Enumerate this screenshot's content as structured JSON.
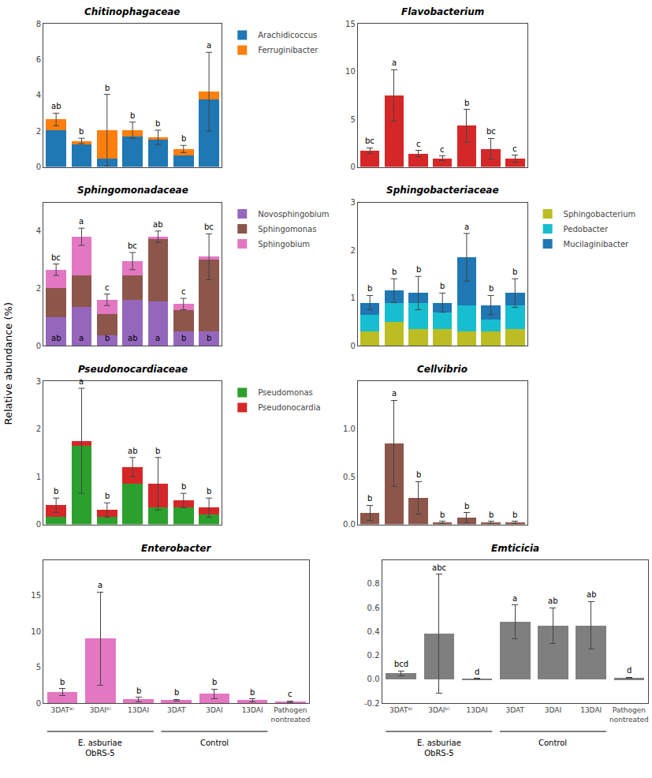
{
  "ylabel": "Relative abundance (%)",
  "chart_data": [
    {
      "type": "bar",
      "title": "Chitinophagaceae",
      "stacked": true,
      "categories": [
        null,
        null,
        null,
        null,
        null,
        null,
        null
      ],
      "tick_labels": "y",
      "grid": false,
      "legend": "right",
      "ylim": [
        0,
        8
      ],
      "yticks": [
        0,
        2,
        4,
        6,
        8
      ],
      "series": [
        {
          "name": "Arachidicoccus",
          "values": [
            2.05,
            1.25,
            0.45,
            1.7,
            1.5,
            0.65,
            3.75
          ]
        },
        {
          "name": "Ferruginibacter",
          "values": [
            0.6,
            0.2,
            1.6,
            0.35,
            0.15,
            0.35,
            0.45
          ]
        }
      ],
      "error": [
        0.35,
        0.15,
        2.0,
        0.45,
        0.4,
        0.2,
        2.2
      ],
      "annotations": [
        {
          "position": "top",
          "texts": [
            "ab",
            "b",
            "b",
            "b",
            "b",
            "b",
            "a"
          ]
        }
      ]
    },
    {
      "type": "bar",
      "title": "Flavobacterium",
      "categories": [
        null,
        null,
        null,
        null,
        null,
        null,
        null
      ],
      "tick_labels": "y",
      "grid": false,
      "ylim": [
        0,
        15
      ],
      "yticks": [
        0,
        5,
        10,
        15
      ],
      "values": [
        1.7,
        7.5,
        1.4,
        0.9,
        4.3,
        1.9,
        0.85
      ],
      "error": [
        0.3,
        2.7,
        0.3,
        0.25,
        1.7,
        1.1,
        0.35
      ],
      "annotations": [
        {
          "position": "top",
          "texts": [
            "bc",
            "a",
            "c",
            "c",
            "b",
            "bc",
            "c"
          ]
        }
      ]
    },
    {
      "type": "bar",
      "title": "Sphingomonadaceae",
      "stacked": true,
      "categories": [
        null,
        null,
        null,
        null,
        null,
        null,
        null
      ],
      "tick_labels": "y",
      "grid": false,
      "legend": "right",
      "ylim": [
        0,
        5
      ],
      "yticks": [
        0,
        2,
        4
      ],
      "series": [
        {
          "name": "Novosphingobium",
          "values": [
            1.0,
            1.35,
            0.35,
            1.6,
            1.55,
            0.5,
            0.5
          ]
        },
        {
          "name": "Sphingomonas",
          "values": [
            1.0,
            1.1,
            0.75,
            0.85,
            2.2,
            0.75,
            2.5
          ]
        },
        {
          "name": "Sphingobium",
          "values": [
            0.65,
            1.35,
            0.5,
            0.5,
            0.05,
            0.2,
            0.1
          ]
        }
      ],
      "error": [
        0.2,
        0.3,
        0.2,
        0.3,
        0.2,
        0.2,
        0.8
      ],
      "annotations": [
        {
          "position": "top",
          "texts": [
            "bc",
            "a",
            "c",
            "bc",
            "ab",
            "c",
            "bc"
          ]
        },
        {
          "position": "bottom",
          "texts": [
            "ab",
            "a",
            "b",
            "ab",
            "a",
            "b",
            "b"
          ]
        }
      ]
    },
    {
      "type": "bar",
      "title": "Sphingobacteriaceae",
      "stacked": true,
      "categories": [
        null,
        null,
        null,
        null,
        null,
        null,
        null
      ],
      "tick_labels": "y",
      "grid": false,
      "legend": "right",
      "ylim": [
        0,
        3
      ],
      "yticks": [
        0,
        1,
        2,
        3
      ],
      "series": [
        {
          "name": "Sphingobacterium",
          "values": [
            0.3,
            0.5,
            0.35,
            0.35,
            0.3,
            0.3,
            0.35
          ]
        },
        {
          "name": "Pedobacter",
          "values": [
            0.35,
            0.4,
            0.55,
            0.35,
            0.55,
            0.25,
            0.5
          ]
        },
        {
          "name": "Mucilaginibacter",
          "values": [
            0.25,
            0.25,
            0.2,
            0.2,
            1.0,
            0.3,
            0.25
          ]
        }
      ],
      "error": [
        0.15,
        0.25,
        0.35,
        0.2,
        0.5,
        0.2,
        0.3
      ],
      "annotations": [
        {
          "position": "top",
          "texts": [
            "b",
            "b",
            "b",
            "b",
            "a",
            "b",
            "b"
          ]
        }
      ]
    },
    {
      "type": "bar",
      "title": "Pseudonocardiaceae",
      "stacked": true,
      "categories": [
        null,
        null,
        null,
        null,
        null,
        null,
        null
      ],
      "tick_labels": "y",
      "grid": false,
      "legend": "right",
      "ylim": [
        0,
        3
      ],
      "yticks": [
        0,
        1,
        2,
        3
      ],
      "series": [
        {
          "name": "Pseudomonas",
          "values": [
            0.15,
            1.65,
            0.15,
            0.85,
            0.35,
            0.35,
            0.2
          ]
        },
        {
          "name": "Pseudonocardia",
          "values": [
            0.25,
            0.1,
            0.15,
            0.35,
            0.5,
            0.15,
            0.15
          ]
        }
      ],
      "error": [
        0.15,
        1.1,
        0.15,
        0.2,
        0.55,
        0.15,
        0.2
      ],
      "annotations": [
        {
          "position": "top",
          "texts": [
            "b",
            "a",
            "b",
            "ab",
            "b",
            "b",
            "b"
          ]
        }
      ]
    },
    {
      "type": "bar",
      "title": "Cellvibrio",
      "categories": [
        null,
        null,
        null,
        null,
        null,
        null,
        null
      ],
      "tick_labels": "y",
      "grid": false,
      "ylim": [
        0,
        1.5
      ],
      "yticks": [
        {
          "value": 0,
          "label": "0.0"
        },
        0.5,
        {
          "value": 1,
          "label": "1.0"
        }
      ],
      "values": [
        0.12,
        0.85,
        0.28,
        0.02,
        0.07,
        0.02,
        0.02
      ],
      "error": [
        0.08,
        0.45,
        0.17,
        0.01,
        0.05,
        0.01,
        0.01
      ],
      "annotations": [
        {
          "position": "top",
          "texts": [
            "b",
            "a",
            "b",
            "b",
            "b",
            "b",
            "b"
          ]
        }
      ]
    },
    {
      "type": "bar",
      "title": "Enterobacter",
      "categories": [
        "3DATᵃ⁾",
        "3DAIᵇ⁾",
        "13DAI",
        "3DAT",
        "3DAI",
        "13DAI",
        "Pathogen\nnontreated"
      ],
      "grid": false,
      "ylim": [
        0,
        20
      ],
      "yticks": [
        0,
        5,
        10,
        15
      ],
      "values": [
        1.5,
        9.0,
        0.5,
        0.4,
        1.3,
        0.4,
        0.2
      ],
      "error": [
        0.5,
        6.5,
        0.3,
        0.15,
        0.65,
        0.2,
        0.1
      ],
      "annotations": [
        {
          "position": "top",
          "texts": [
            "b",
            "a",
            "b",
            "b",
            "b",
            "b",
            "c"
          ]
        }
      ],
      "groups": [
        {
          "label": "E. asburiae\nObRS-5",
          "from": 0,
          "to": 2
        },
        {
          "label": "Control",
          "from": 3,
          "to": 5
        }
      ]
    },
    {
      "type": "bar",
      "title": "Emticicia",
      "categories": [
        "3DATᵃ⁾",
        "3DAIᵇ⁾",
        "13DAI",
        "3DAT",
        "3DAI",
        "13DAI",
        "Pathogen\nnontreated"
      ],
      "grid": false,
      "ylim": [
        -0.2,
        1.0
      ],
      "yticks": [
        -0.2,
        {
          "value": 0,
          "label": "0.0"
        },
        0.2,
        0.4,
        0.6,
        0.8
      ],
      "values": [
        0.05,
        0.38,
        0.005,
        0.48,
        0.45,
        0.45,
        0.01
      ],
      "error": [
        0.02,
        0.5,
        0.003,
        0.14,
        0.15,
        0.2,
        0.005
      ],
      "annotations": [
        {
          "position": "top",
          "texts": [
            "bcd",
            "abc",
            "d",
            "a",
            "ab",
            "ab",
            "d"
          ]
        }
      ],
      "groups": [
        {
          "label": "E. asburiae\nObRS-5",
          "from": 0,
          "to": 2
        },
        {
          "label": "Control",
          "from": 3,
          "to": 5
        }
      ]
    }
  ]
}
